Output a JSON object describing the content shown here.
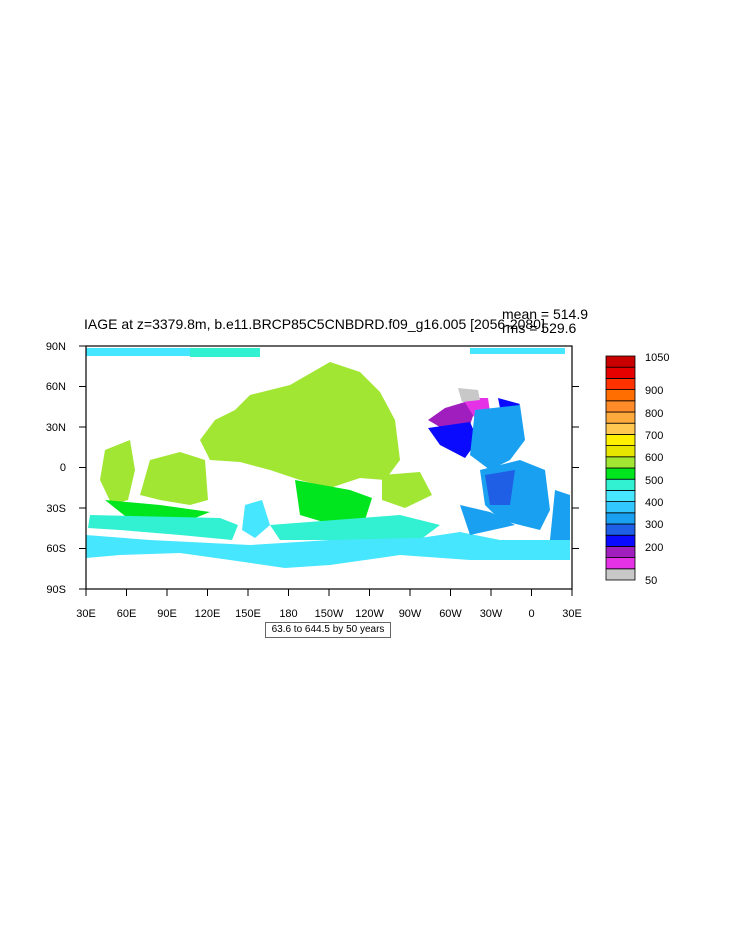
{
  "title": "IAGE at z=3379.8m, b.e11.BRCP85C5CNBDRD.f09_g16.005 [2056-2080]",
  "stats": {
    "mean": "mean = 514.9",
    "rms": "rms = 529.6"
  },
  "axes": {
    "x_ticks": [
      "30E",
      "60E",
      "90E",
      "120E",
      "150E",
      "180",
      "150W",
      "120W",
      "90W",
      "60W",
      "30W",
      "0",
      "30E"
    ],
    "y_ticks": [
      "90N",
      "60N",
      "30N",
      "0",
      "30S",
      "60S",
      "90S"
    ]
  },
  "colorbar": {
    "labels": [
      "1050",
      "900",
      "800",
      "700",
      "600",
      "500",
      "400",
      "300",
      "200",
      "50"
    ],
    "colors": [
      "#c8c8c8",
      "#e632e6",
      "#a01ebe",
      "#0a0aff",
      "#1e5fe6",
      "#19a0f0",
      "#32c8ff",
      "#46e6ff",
      "#32f0d2",
      "#00e61e",
      "#a0e632",
      "#e6e600",
      "#fff000",
      "#ffc850",
      "#ffaa3c",
      "#ff8c28",
      "#ff6e00",
      "#ff3200",
      "#e60000",
      "#c80000"
    ]
  },
  "info_label": "63.6 to 644.5 by 50 years",
  "map": {
    "field": "IAGE",
    "units": "years",
    "contour_min": 63.6,
    "contour_max": 644.5,
    "contour_interval": 50
  }
}
